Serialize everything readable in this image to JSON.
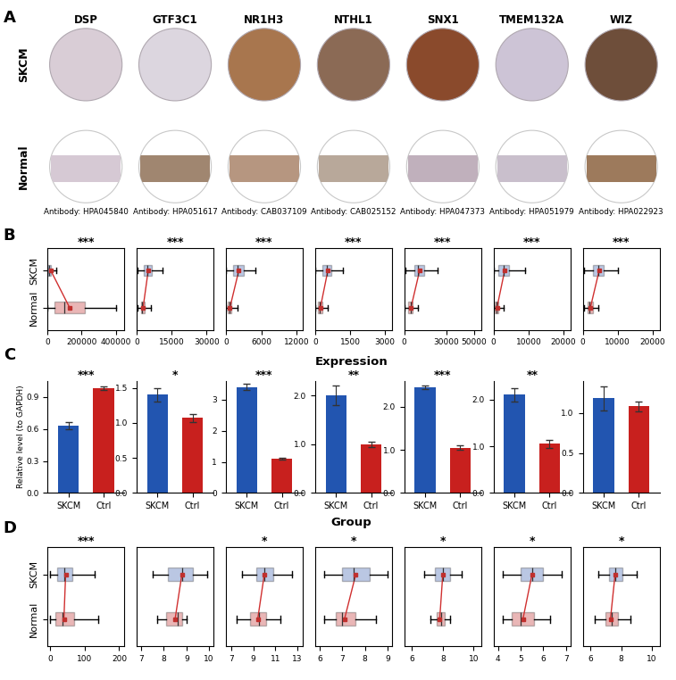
{
  "panel_labels": [
    "A",
    "B",
    "C",
    "D"
  ],
  "panel_A": {
    "rows": [
      "SKCM",
      "Normal"
    ],
    "genes": [
      "DSP",
      "GTF3C1",
      "NR1H3",
      "NTHL1",
      "SNX1",
      "TMEM132A",
      "WIZ"
    ],
    "antibodies": [
      "Antibody: HPA045840",
      "Antibody: HPA051617",
      "Antibody: CAB037109",
      "Antibody: CAB025152",
      "Antibody: HPA047373",
      "Antibody: HPA051979",
      "Antibody: HPA022923"
    ]
  },
  "panel_C": {
    "title": "Expression",
    "xlabel": "Group"
  },
  "chart_data": [
    {
      "panel": "B",
      "type": "box",
      "orientation": "horizontal",
      "title": "***",
      "categories": [
        "SKCM",
        "Normal"
      ],
      "colors": [
        "#3a5fb0",
        "#c0302e"
      ],
      "stats": [
        {
          "med": 10000,
          "q1": 2000,
          "q3": 20000,
          "whislo": 0,
          "whishi": 50000,
          "mean": 20000
        },
        {
          "med": 100000,
          "q1": 40000,
          "q3": 220000,
          "whislo": 0,
          "whishi": 400000,
          "mean": 130000
        }
      ],
      "xlim": [
        0,
        450000
      ],
      "xticks": [
        0,
        200000,
        400000
      ]
    },
    {
      "panel": "B",
      "type": "box",
      "orientation": "horizontal",
      "title": "***",
      "categories": [
        "SKCM",
        "Normal"
      ],
      "colors": [
        "#3a5fb0",
        "#c0302e"
      ],
      "tick_labels": "x",
      "stats": [
        {
          "med": 4500,
          "q1": 3000,
          "q3": 6500,
          "whislo": 500,
          "whishi": 11000,
          "mean": 5000
        },
        {
          "med": 2500,
          "q1": 1800,
          "q3": 3500,
          "whislo": 500,
          "whishi": 6000,
          "mean": 2800
        }
      ],
      "xlim": [
        0,
        33000
      ],
      "xticks": [
        0,
        15000,
        30000
      ]
    },
    {
      "panel": "B",
      "type": "box",
      "orientation": "horizontal",
      "title": "***",
      "categories": [
        "SKCM",
        "Normal"
      ],
      "colors": [
        "#3a5fb0",
        "#c0302e"
      ],
      "tick_labels": "x",
      "stats": [
        {
          "med": 2000,
          "q1": 1200,
          "q3": 3000,
          "whislo": 0,
          "whishi": 5000,
          "mean": 2200
        },
        {
          "med": 600,
          "q1": 300,
          "q3": 1000,
          "whislo": 0,
          "whishi": 2000,
          "mean": 700
        }
      ],
      "xlim": [
        0,
        13000
      ],
      "xticks": [
        0,
        6000,
        12000
      ]
    },
    {
      "panel": "B",
      "type": "box",
      "orientation": "horizontal",
      "title": "***",
      "categories": [
        "SKCM",
        "Normal"
      ],
      "colors": [
        "#3a5fb0",
        "#c0302e"
      ],
      "tick_labels": "x",
      "stats": [
        {
          "med": 500,
          "q1": 300,
          "q3": 700,
          "whislo": 0,
          "whishi": 1200,
          "mean": 550
        },
        {
          "med": 200,
          "q1": 120,
          "q3": 300,
          "whislo": 0,
          "whishi": 550,
          "mean": 230
        }
      ],
      "xlim": [
        0,
        3300
      ],
      "xticks": [
        0,
        1500,
        3000
      ]
    },
    {
      "panel": "B",
      "type": "box",
      "orientation": "horizontal",
      "title": "***",
      "categories": [
        "SKCM",
        "Normal"
      ],
      "colors": [
        "#3a5fb0",
        "#c0302e"
      ],
      "tick_labels": "x",
      "stats": [
        {
          "med": 10000,
          "q1": 7000,
          "q3": 14000,
          "whislo": 1000,
          "whishi": 24000,
          "mean": 11000
        },
        {
          "med": 4500,
          "q1": 3000,
          "q3": 6000,
          "whislo": 500,
          "whishi": 10000,
          "mean": 4800
        }
      ],
      "xlim": [
        0,
        55000
      ],
      "xticks": [
        0,
        30000,
        50000
      ]
    },
    {
      "panel": "B",
      "type": "box",
      "orientation": "horizontal",
      "title": "***",
      "categories": [
        "SKCM",
        "Normal"
      ],
      "colors": [
        "#3a5fb0",
        "#c0302e"
      ],
      "tick_labels": "x",
      "stats": [
        {
          "med": 3000,
          "q1": 1500,
          "q3": 4500,
          "whislo": 0,
          "whishi": 9000,
          "mean": 3200
        },
        {
          "med": 800,
          "q1": 400,
          "q3": 1500,
          "whislo": 0,
          "whishi": 3000,
          "mean": 1000
        }
      ],
      "xlim": [
        0,
        22000
      ],
      "xticks": [
        0,
        10000,
        20000
      ]
    },
    {
      "panel": "B",
      "type": "box",
      "orientation": "horizontal",
      "title": "***",
      "categories": [
        "SKCM",
        "Normal"
      ],
      "colors": [
        "#3a5fb0",
        "#c0302e"
      ],
      "tick_labels": "x",
      "stats": [
        {
          "med": 4500,
          "q1": 3000,
          "q3": 6000,
          "whislo": 500,
          "whishi": 10000,
          "mean": 4700
        },
        {
          "med": 2000,
          "q1": 1500,
          "q3": 2800,
          "whislo": 300,
          "whishi": 4500,
          "mean": 2200
        }
      ],
      "xlim": [
        0,
        22000
      ],
      "xticks": [
        0,
        10000,
        20000
      ]
    },
    {
      "panel": "C",
      "type": "bar",
      "title": "***",
      "ylabel": "Relative level (to GAPDH)",
      "categories": [
        "SKCM",
        "Ctrl"
      ],
      "values": [
        0.63,
        0.98
      ],
      "errors": [
        0.03,
        0.02
      ],
      "colors": [
        "#2255b0",
        "#c8201e"
      ],
      "ylim": [
        0,
        1.05
      ],
      "yticks": [
        {
          "value": 0,
          "label": "0.0"
        },
        0.3,
        0.6,
        0.9
      ]
    },
    {
      "panel": "C",
      "type": "bar",
      "title": "*",
      "categories": [
        "SKCM",
        "Ctrl"
      ],
      "values": [
        1.4,
        1.07
      ],
      "errors": [
        0.1,
        0.06
      ],
      "colors": [
        "#2255b0",
        "#c8201e"
      ],
      "ylim": [
        0,
        1.6
      ],
      "yticks": [
        {
          "value": 0,
          "label": "0.0"
        },
        0.5,
        {
          "value": 1,
          "label": "1.0"
        },
        1.5
      ]
    },
    {
      "panel": "C",
      "type": "bar",
      "title": "***",
      "categories": [
        "SKCM",
        "Ctrl"
      ],
      "values": [
        3.4,
        1.1
      ],
      "errors": [
        0.1,
        0.02
      ],
      "colors": [
        "#2255b0",
        "#c8201e"
      ],
      "ylim": [
        0,
        3.6
      ],
      "yticks": [
        0,
        1,
        2,
        3
      ]
    },
    {
      "panel": "C",
      "type": "bar",
      "title": "**",
      "categories": [
        "SKCM",
        "Ctrl"
      ],
      "values": [
        2.0,
        1.0
      ],
      "errors": [
        0.2,
        0.05
      ],
      "colors": [
        "#2255b0",
        "#c8201e"
      ],
      "ylim": [
        0,
        2.3
      ],
      "yticks": [
        {
          "value": 0,
          "label": "0.0"
        },
        {
          "value": 1,
          "label": "1.0"
        },
        {
          "value": 2,
          "label": "2.0"
        }
      ]
    },
    {
      "panel": "C",
      "type": "bar",
      "title": "***",
      "categories": [
        "SKCM",
        "Ctrl"
      ],
      "values": [
        2.45,
        1.05
      ],
      "errors": [
        0.05,
        0.05
      ],
      "colors": [
        "#2255b0",
        "#c8201e"
      ],
      "ylim": [
        0,
        2.6
      ],
      "yticks": [
        {
          "value": 0,
          "label": "0.0"
        },
        {
          "value": 1,
          "label": "1.0"
        },
        {
          "value": 2,
          "label": "2.0"
        }
      ]
    },
    {
      "panel": "C",
      "type": "bar",
      "title": "**",
      "categories": [
        "SKCM",
        "Ctrl"
      ],
      "values": [
        2.1,
        1.05
      ],
      "errors": [
        0.15,
        0.08
      ],
      "colors": [
        "#2255b0",
        "#c8201e"
      ],
      "ylim": [
        0,
        2.4
      ],
      "yticks": [
        {
          "value": 0,
          "label": "0.0"
        },
        {
          "value": 1,
          "label": "1.0"
        },
        {
          "value": 2,
          "label": "2.0"
        }
      ]
    },
    {
      "panel": "C",
      "type": "bar",
      "categories": [
        "SKCM",
        "Ctrl"
      ],
      "values": [
        1.18,
        1.08
      ],
      "errors": [
        0.15,
        0.06
      ],
      "colors": [
        "#2255b0",
        "#c8201e"
      ],
      "ylim": [
        0,
        1.4
      ],
      "yticks": [
        {
          "value": 0,
          "label": "0.0"
        },
        0.5,
        {
          "value": 1,
          "label": "1.0"
        }
      ]
    },
    {
      "panel": "D",
      "type": "box",
      "orientation": "horizontal",
      "title": "***",
      "categories": [
        "SKCM",
        "Normal"
      ],
      "colors": [
        "#3a5fb0",
        "#c0302e"
      ],
      "stats": [
        {
          "med": 40,
          "q1": 20,
          "q3": 65,
          "whislo": 0,
          "whishi": 130,
          "mean": 45
        },
        {
          "med": 35,
          "q1": 15,
          "q3": 70,
          "whislo": 0,
          "whishi": 140,
          "mean": 40
        }
      ],
      "xlim": [
        -8,
        215
      ],
      "xticks": [
        0,
        100,
        200
      ]
    },
    {
      "panel": "D",
      "type": "box",
      "orientation": "horizontal",
      "categories": [
        "SKCM",
        "Normal"
      ],
      "colors": [
        "#3a5fb0",
        "#c0302e"
      ],
      "tick_labels": "x",
      "stats": [
        {
          "med": 8.8,
          "q1": 8.2,
          "q3": 9.3,
          "whislo": 7.5,
          "whishi": 9.9,
          "mean": 8.8
        },
        {
          "med": 8.6,
          "q1": 8.1,
          "q3": 8.8,
          "whislo": 7.7,
          "whishi": 9.0,
          "mean": 8.5
        }
      ],
      "xlim": [
        6.8,
        10.2
      ],
      "xticks": [
        7,
        8,
        9,
        10
      ]
    },
    {
      "panel": "D",
      "type": "box",
      "orientation": "horizontal",
      "title": "*",
      "categories": [
        "SKCM",
        "Normal"
      ],
      "colors": [
        "#3a5fb0",
        "#c0302e"
      ],
      "tick_labels": "x",
      "stats": [
        {
          "med": 10.0,
          "q1": 9.3,
          "q3": 10.8,
          "whislo": 8.0,
          "whishi": 12.5,
          "mean": 10.0
        },
        {
          "med": 9.5,
          "q1": 8.7,
          "q3": 10.2,
          "whislo": 7.5,
          "whishi": 11.5,
          "mean": 9.4
        }
      ],
      "xlim": [
        6.5,
        13.5
      ],
      "xticks": [
        7,
        9,
        11,
        13
      ]
    },
    {
      "panel": "D",
      "type": "box",
      "orientation": "horizontal",
      "title": "*",
      "categories": [
        "SKCM",
        "Normal"
      ],
      "colors": [
        "#3a5fb0",
        "#c0302e"
      ],
      "tick_labels": "x",
      "stats": [
        {
          "med": 7.5,
          "q1": 7.0,
          "q3": 8.2,
          "whislo": 6.2,
          "whishi": 9.0,
          "mean": 7.6
        },
        {
          "med": 7.0,
          "q1": 6.7,
          "q3": 7.6,
          "whislo": 6.2,
          "whishi": 8.5,
          "mean": 7.1
        }
      ],
      "xlim": [
        5.8,
        9.2
      ],
      "xticks": [
        6,
        7,
        8,
        9
      ]
    },
    {
      "panel": "D",
      "type": "box",
      "orientation": "horizontal",
      "title": "*",
      "categories": [
        "SKCM",
        "Normal"
      ],
      "colors": [
        "#3a5fb0",
        "#c0302e"
      ],
      "tick_labels": "x",
      "stats": [
        {
          "med": 8.0,
          "q1": 7.5,
          "q3": 8.5,
          "whislo": 6.8,
          "whishi": 9.2,
          "mean": 8.0
        },
        {
          "med": 7.9,
          "q1": 7.6,
          "q3": 8.1,
          "whislo": 7.2,
          "whishi": 8.5,
          "mean": 7.8
        }
      ],
      "xlim": [
        5.5,
        10.5
      ],
      "xticks": [
        6,
        8,
        10
      ]
    },
    {
      "panel": "D",
      "type": "box",
      "orientation": "horizontal",
      "title": "*",
      "categories": [
        "SKCM",
        "Normal"
      ],
      "colors": [
        "#3a5fb0",
        "#c0302e"
      ],
      "tick_labels": "x",
      "stats": [
        {
          "med": 5.5,
          "q1": 5.0,
          "q3": 6.0,
          "whislo": 4.2,
          "whishi": 6.8,
          "mean": 5.5
        },
        {
          "med": 5.0,
          "q1": 4.6,
          "q3": 5.6,
          "whislo": 4.2,
          "whishi": 6.3,
          "mean": 5.1
        }
      ],
      "xlim": [
        3.8,
        7.2
      ],
      "xticks": [
        4,
        5,
        6,
        7
      ]
    },
    {
      "panel": "D",
      "type": "box",
      "orientation": "horizontal",
      "title": "*",
      "categories": [
        "SKCM",
        "Normal"
      ],
      "colors": [
        "#3a5fb0",
        "#c0302e"
      ],
      "tick_labels": "x",
      "stats": [
        {
          "med": 7.6,
          "q1": 7.2,
          "q3": 8.1,
          "whislo": 6.5,
          "whishi": 9.0,
          "mean": 7.6
        },
        {
          "med": 7.4,
          "q1": 7.0,
          "q3": 7.8,
          "whislo": 6.3,
          "whishi": 8.6,
          "mean": 7.3
        }
      ],
      "xlim": [
        5.5,
        10.5
      ],
      "xticks": [
        6,
        8,
        10
      ]
    }
  ]
}
